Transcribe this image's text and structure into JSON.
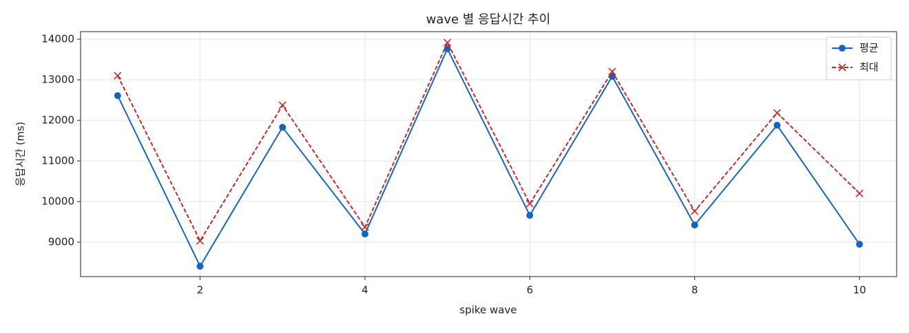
{
  "chart_data": {
    "type": "line",
    "title": "wave 별 응답시간 추이",
    "xlabel": "spike wave",
    "ylabel": "응답시간 (ms)",
    "x": [
      1,
      2,
      3,
      4,
      5,
      6,
      7,
      8,
      9,
      10
    ],
    "series": [
      {
        "name": "평균",
        "color": "#1565c0",
        "linestyle": "solid",
        "marker": "circle",
        "values": [
          12610,
          8407,
          11830,
          9203,
          13763,
          9661,
          13085,
          9424,
          11881,
          8949
        ]
      },
      {
        "name": "최대",
        "color": "#c62828",
        "linestyle": "dashed",
        "marker": "x",
        "values": [
          13102,
          9034,
          12373,
          9373,
          13915,
          9949,
          13203,
          9763,
          12186,
          10203
        ]
      }
    ],
    "xlim": [
      0.55,
      10.45
    ],
    "xticks": [
      2,
      4,
      6,
      8,
      10
    ],
    "ylim": [
      8153,
      14186
    ],
    "yticks": [
      9000,
      10000,
      11000,
      12000,
      13000,
      14000
    ],
    "grid": true,
    "legend": "upper right"
  }
}
